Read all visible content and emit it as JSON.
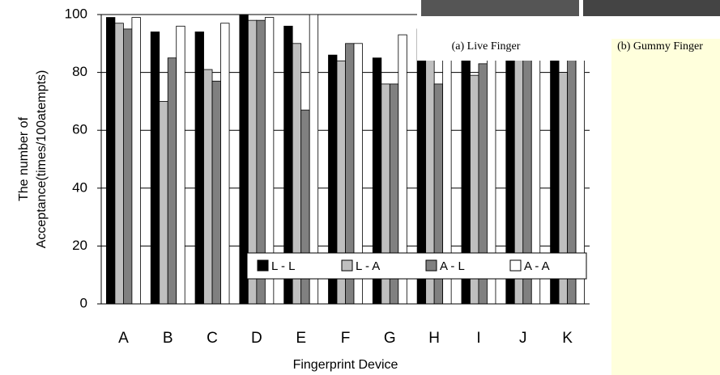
{
  "chart_data": {
    "type": "bar",
    "x_label": "Fingerprint Device",
    "y_label": [
      "The number of",
      "Acceptance(times/100atempts)"
    ],
    "categories": [
      "A",
      "B",
      "C",
      "D",
      "E",
      "F",
      "G",
      "H",
      "I",
      "J",
      "K"
    ],
    "series": [
      {
        "name": "L - L",
        "color": "#000000",
        "values": [
          99,
          94,
          94,
          100,
          96,
          86,
          85,
          95,
          95,
          95,
          95
        ]
      },
      {
        "name": "L - A",
        "color": "#bfbfbf",
        "values": [
          97,
          70,
          81,
          98,
          90,
          84,
          76,
          90,
          79,
          93,
          80
        ]
      },
      {
        "name": "A - L",
        "color": "#808080",
        "values": [
          95,
          85,
          77,
          98,
          67,
          90,
          76,
          76,
          83,
          95,
          90
        ]
      },
      {
        "name": "A - A",
        "color": "#ffffff",
        "values": [
          99,
          96,
          97,
          99,
          100,
          90,
          93,
          92,
          90,
          97,
          95
        ]
      }
    ],
    "ylim": [
      0,
      100
    ],
    "yticks": [
      0,
      20,
      40,
      60,
      80,
      100
    ],
    "grid": true
  },
  "overlay": {
    "captions": [
      "(a) Live Finger",
      "(b) Gummy Finger"
    ]
  }
}
